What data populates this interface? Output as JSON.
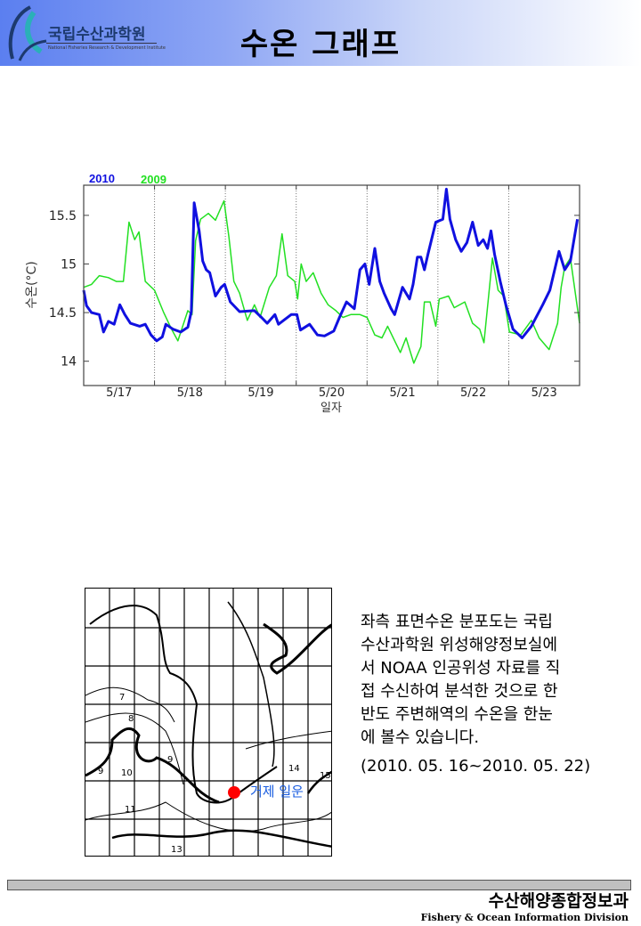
{
  "header": {
    "logo_name": "국립수산과학원",
    "logo_subtitle": "National Fisheries Research & Development Institute",
    "title": "수온 그래프"
  },
  "colors": {
    "series_2010": "#1010e0",
    "series_2009": "#22e022",
    "map_marker": "#ff0000",
    "map_label": "#1a5de0"
  },
  "chart_data": {
    "type": "line",
    "title": "",
    "xlabel": "일자",
    "ylabel": "수온(°C)",
    "ylim": [
      13.75,
      15.81
    ],
    "xlim": [
      0,
      7
    ],
    "x_unit": "days since 5/17 00:00",
    "yticks": [
      14,
      14.5,
      15,
      15.5
    ],
    "ytick_labels": [
      "14",
      "14.5",
      "15",
      "15.5"
    ],
    "xtick_labels": [
      "5/17",
      "5/18",
      "5/19",
      "5/20",
      "5/21",
      "5/22",
      "5/23"
    ],
    "legend": [
      "2010",
      "2009"
    ],
    "legend_placement": "top-left",
    "series": [
      {
        "name": "2010",
        "points": [
          [
            0,
            14.73
          ],
          [
            0.04,
            14.57
          ],
          [
            0.11,
            14.5
          ],
          [
            0.22,
            14.48
          ],
          [
            0.28,
            14.3
          ],
          [
            0.35,
            14.41
          ],
          [
            0.43,
            14.38
          ],
          [
            0.51,
            14.58
          ],
          [
            0.58,
            14.48
          ],
          [
            0.66,
            14.39
          ],
          [
            0.79,
            14.36
          ],
          [
            0.87,
            14.38
          ],
          [
            0.95,
            14.27
          ],
          [
            1.03,
            14.21
          ],
          [
            1.11,
            14.25
          ],
          [
            1.16,
            14.38
          ],
          [
            1.26,
            14.33
          ],
          [
            1.37,
            14.3
          ],
          [
            1.47,
            14.35
          ],
          [
            1.52,
            14.51
          ],
          [
            1.56,
            15.63
          ],
          [
            1.63,
            15.34
          ],
          [
            1.68,
            15.03
          ],
          [
            1.73,
            14.94
          ],
          [
            1.78,
            14.91
          ],
          [
            1.86,
            14.67
          ],
          [
            1.94,
            14.76
          ],
          [
            1.99,
            14.79
          ],
          [
            2.07,
            14.61
          ],
          [
            2.2,
            14.51
          ],
          [
            2.41,
            14.52
          ],
          [
            2.51,
            14.45
          ],
          [
            2.59,
            14.39
          ],
          [
            2.7,
            14.48
          ],
          [
            2.75,
            14.38
          ],
          [
            2.93,
            14.48
          ],
          [
            3.01,
            14.48
          ],
          [
            3.06,
            14.32
          ],
          [
            3.19,
            14.38
          ],
          [
            3.3,
            14.27
          ],
          [
            3.4,
            14.26
          ],
          [
            3.53,
            14.31
          ],
          [
            3.61,
            14.45
          ],
          [
            3.71,
            14.61
          ],
          [
            3.82,
            14.54
          ],
          [
            3.9,
            14.94
          ],
          [
            3.97,
            15.0
          ],
          [
            4.03,
            14.79
          ],
          [
            4.11,
            15.16
          ],
          [
            4.18,
            14.82
          ],
          [
            4.24,
            14.7
          ],
          [
            4.34,
            14.54
          ],
          [
            4.39,
            14.48
          ],
          [
            4.5,
            14.76
          ],
          [
            4.6,
            14.64
          ],
          [
            4.65,
            14.79
          ],
          [
            4.71,
            15.07
          ],
          [
            4.76,
            15.07
          ],
          [
            4.81,
            14.94
          ],
          [
            4.86,
            15.1
          ],
          [
            4.97,
            15.43
          ],
          [
            5.07,
            15.46
          ],
          [
            5.12,
            15.77
          ],
          [
            5.17,
            15.46
          ],
          [
            5.25,
            15.25
          ],
          [
            5.33,
            15.13
          ],
          [
            5.41,
            15.22
          ],
          [
            5.49,
            15.43
          ],
          [
            5.57,
            15.19
          ],
          [
            5.64,
            15.25
          ],
          [
            5.7,
            15.16
          ],
          [
            5.75,
            15.34
          ],
          [
            5.8,
            15.1
          ],
          [
            5.88,
            14.82
          ],
          [
            5.96,
            14.58
          ],
          [
            6.06,
            14.33
          ],
          [
            6.19,
            14.24
          ],
          [
            6.32,
            14.36
          ],
          [
            6.48,
            14.58
          ],
          [
            6.58,
            14.73
          ],
          [
            6.71,
            15.13
          ],
          [
            6.79,
            14.94
          ],
          [
            6.87,
            15.03
          ],
          [
            6.97,
            15.46
          ]
        ]
      },
      {
        "name": "2009",
        "points": [
          [
            0,
            14.76
          ],
          [
            0.11,
            14.79
          ],
          [
            0.22,
            14.88
          ],
          [
            0.35,
            14.86
          ],
          [
            0.46,
            14.82
          ],
          [
            0.56,
            14.82
          ],
          [
            0.64,
            15.43
          ],
          [
            0.72,
            15.25
          ],
          [
            0.78,
            15.33
          ],
          [
            0.87,
            14.82
          ],
          [
            1.0,
            14.73
          ],
          [
            1.13,
            14.5
          ],
          [
            1.24,
            14.33
          ],
          [
            1.33,
            14.21
          ],
          [
            1.47,
            14.52
          ],
          [
            1.53,
            14.48
          ],
          [
            1.58,
            15.24
          ],
          [
            1.65,
            15.46
          ],
          [
            1.76,
            15.52
          ],
          [
            1.86,
            15.45
          ],
          [
            1.98,
            15.65
          ],
          [
            2.05,
            15.28
          ],
          [
            2.12,
            14.82
          ],
          [
            2.2,
            14.7
          ],
          [
            2.31,
            14.42
          ],
          [
            2.41,
            14.58
          ],
          [
            2.49,
            14.45
          ],
          [
            2.62,
            14.76
          ],
          [
            2.72,
            14.88
          ],
          [
            2.8,
            15.31
          ],
          [
            2.88,
            14.88
          ],
          [
            2.98,
            14.82
          ],
          [
            3.02,
            14.64
          ],
          [
            3.07,
            15.0
          ],
          [
            3.14,
            14.82
          ],
          [
            3.24,
            14.91
          ],
          [
            3.35,
            14.7
          ],
          [
            3.45,
            14.58
          ],
          [
            3.56,
            14.52
          ],
          [
            3.66,
            14.45
          ],
          [
            3.77,
            14.48
          ],
          [
            3.9,
            14.48
          ],
          [
            4.0,
            14.45
          ],
          [
            4.11,
            14.27
          ],
          [
            4.21,
            14.24
          ],
          [
            4.29,
            14.36
          ],
          [
            4.39,
            14.21
          ],
          [
            4.47,
            14.09
          ],
          [
            4.55,
            14.24
          ],
          [
            4.66,
            13.98
          ],
          [
            4.76,
            14.15
          ],
          [
            4.81,
            14.61
          ],
          [
            4.89,
            14.61
          ],
          [
            4.97,
            14.36
          ],
          [
            5.02,
            14.64
          ],
          [
            5.15,
            14.67
          ],
          [
            5.23,
            14.55
          ],
          [
            5.38,
            14.61
          ],
          [
            5.49,
            14.39
          ],
          [
            5.59,
            14.33
          ],
          [
            5.65,
            14.19
          ],
          [
            5.77,
            15.06
          ],
          [
            5.85,
            14.73
          ],
          [
            5.93,
            14.67
          ],
          [
            6.01,
            14.3
          ],
          [
            6.17,
            14.27
          ],
          [
            6.32,
            14.42
          ],
          [
            6.43,
            14.24
          ],
          [
            6.57,
            14.12
          ],
          [
            6.69,
            14.39
          ],
          [
            6.74,
            14.76
          ],
          [
            6.79,
            14.97
          ],
          [
            6.87,
            15.06
          ],
          [
            7.0,
            14.39
          ]
        ]
      }
    ]
  },
  "map": {
    "location_label": "거제 일운",
    "contour_labels": [
      "7",
      "8",
      "9",
      "9",
      "10",
      "11",
      "13",
      "14",
      "15"
    ]
  },
  "description": {
    "lines": [
      "좌측 표면수온 분포도는 국립",
      "수산과학원 위성해양정보실에",
      "서 NOAA 인공위성 자료를 직",
      "접 수신하여 분석한 것으로  한",
      "반도 주변해역의 수온을 한눈",
      "에 볼수 있습니다."
    ],
    "period": "(2010. 05. 16~2010. 05. 22)"
  },
  "footer": {
    "org_kr": "수산해양종합정보과",
    "org_en": "Fishery & Ocean Information Division"
  }
}
